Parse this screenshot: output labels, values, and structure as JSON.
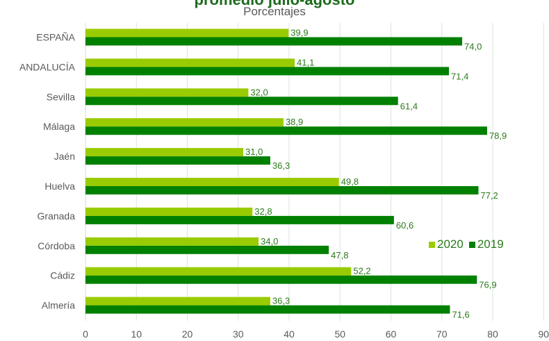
{
  "chart_data": {
    "type": "bar",
    "orientation": "horizontal",
    "title": "promedio julio-agosto",
    "subtitle": "Porcentajes",
    "categories": [
      "ESPAÑA",
      "ANDALUCÍA",
      "Sevilla",
      "Málaga",
      "Jaén",
      "Huelva",
      "Granada",
      "Córdoba",
      "Cádiz",
      "Almería"
    ],
    "series": [
      {
        "name": "2020",
        "color": "#99cc00",
        "values": [
          39.9,
          41.1,
          32.0,
          38.9,
          31.0,
          49.8,
          32.8,
          34.0,
          52.2,
          36.3
        ],
        "labels": [
          "39,9",
          "41,1",
          "32,0",
          "38,9",
          "31,0",
          "49,8",
          "32,8",
          "34,0",
          "52,2",
          "36,3"
        ]
      },
      {
        "name": "2019",
        "color": "#008000",
        "values": [
          74.0,
          71.4,
          61.4,
          78.9,
          36.3,
          77.2,
          60.6,
          47.8,
          76.9,
          71.6
        ],
        "labels": [
          "74,0",
          "71,4",
          "61,4",
          "78,9",
          "36,3",
          "77,2",
          "60,6",
          "47,8",
          "76,9",
          "71,6"
        ]
      }
    ],
    "xlim": [
      0,
      90
    ],
    "xticks": [
      0,
      10,
      20,
      30,
      40,
      50,
      60,
      70,
      80,
      90
    ],
    "grid": "vertical",
    "legend_position": "right"
  }
}
